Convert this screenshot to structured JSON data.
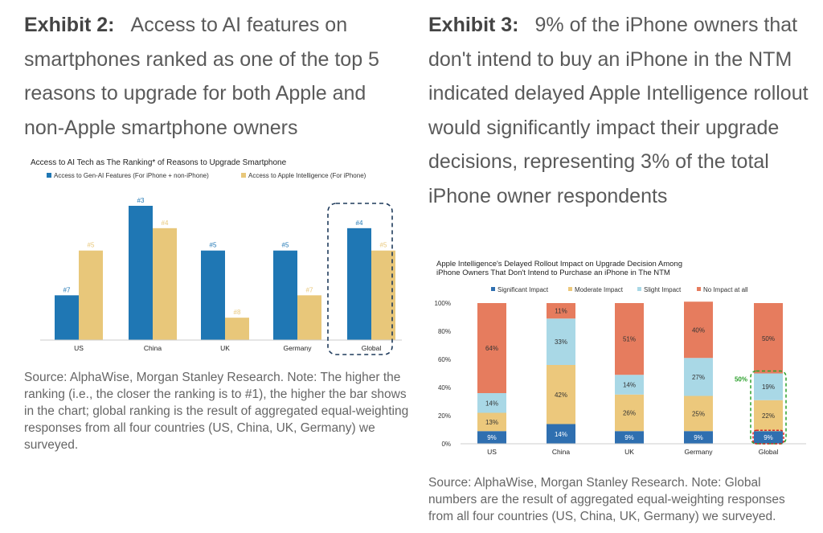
{
  "exhibit2": {
    "label": "Exhibit 2:",
    "heading": "Access to AI features on smartphones ranked as one of the top 5 reasons to upgrade for both Apple and non-Apple smartphone owners",
    "source": "Source: AlphaWise, Morgan Stanley Research. Note: The higher the ranking (i.e., the closer the ranking is to #1), the higher the bar shows in the chart; global ranking is the result of aggregated equal-weighting responses from all four countries (US, China, UK, Germany) we surveyed."
  },
  "exhibit3": {
    "label": "Exhibit 3:",
    "heading": "9% of the iPhone owners that don't intend to buy an iPhone in the NTM indicated delayed Apple Intelligence rollout would significantly impact their upgrade decisions, representing 3% of the total iPhone owner respondents",
    "source": "Source: AlphaWise, Morgan Stanley Research. Note: Global numbers are the result of aggregated equal-weighting responses from all four countries (US, China, UK, Germany) we surveyed."
  },
  "chart_data": [
    {
      "type": "bar",
      "title": "Access to AI Tech as The Ranking* of Reasons to Upgrade Smartphone",
      "categories": [
        "US",
        "China",
        "UK",
        "Germany",
        "Global"
      ],
      "series": [
        {
          "name": "Access to Gen-AI Features (For iPhone + non-iPhone)",
          "color": "#1f77b4",
          "ranks": [
            7,
            3,
            5,
            5,
            4
          ],
          "labels": [
            "#7",
            "#3",
            "#5",
            "#5",
            "#4"
          ]
        },
        {
          "name": "Access to Apple Intelligence (For iPhone)",
          "color": "#e8c77a",
          "ranks": [
            5,
            4,
            8,
            7,
            5
          ],
          "labels": [
            "#5",
            "#4",
            "#8",
            "#7",
            "#5"
          ]
        }
      ],
      "highlight_category": "Global",
      "legend": "top",
      "grid": false
    },
    {
      "type": "bar",
      "stacked": true,
      "title": "Apple Intelligence's Delayed Rollout Impact on Upgrade Decision Among iPhone Owners That Don't Intend to Purchase an iPhone in The NTM",
      "title_lines": [
        "Apple Intelligence's Delayed Rollout Impact on Upgrade Decision Among",
        "iPhone Owners That Don't Intend to Purchase an iPhone in The NTM"
      ],
      "categories": [
        "US",
        "China",
        "UK",
        "Germany",
        "Global"
      ],
      "y_ticks": [
        "0%",
        "20%",
        "40%",
        "60%",
        "80%",
        "100%"
      ],
      "ylim": [
        0,
        100
      ],
      "series": [
        {
          "name": "Significant Impact",
          "color": "#2f6fb0",
          "values": [
            9,
            14,
            9,
            9,
            9
          ],
          "labels": [
            "9%",
            "14%",
            "9%",
            "9%",
            "9%"
          ]
        },
        {
          "name": "Moderate Impact",
          "color": "#ecc87c",
          "values": [
            13,
            42,
            26,
            25,
            22
          ],
          "labels": [
            "13%",
            "42%",
            "26%",
            "25%",
            "22%"
          ]
        },
        {
          "name": "Slight Impact",
          "color": "#a9d8e6",
          "values": [
            14,
            33,
            14,
            27,
            19
          ],
          "labels": [
            "14%",
            "33%",
            "14%",
            "27%",
            "19%"
          ]
        },
        {
          "name": "No Impact at all",
          "color": "#e67c5e",
          "values": [
            64,
            11,
            51,
            40,
            50
          ],
          "labels": [
            "64%",
            "11%",
            "51%",
            "40%",
            "50%"
          ]
        }
      ],
      "annotation": "50%",
      "annotation_color": "#2ca02c",
      "highlight_color": "#d62728",
      "legend": "top",
      "grid": false
    }
  ]
}
